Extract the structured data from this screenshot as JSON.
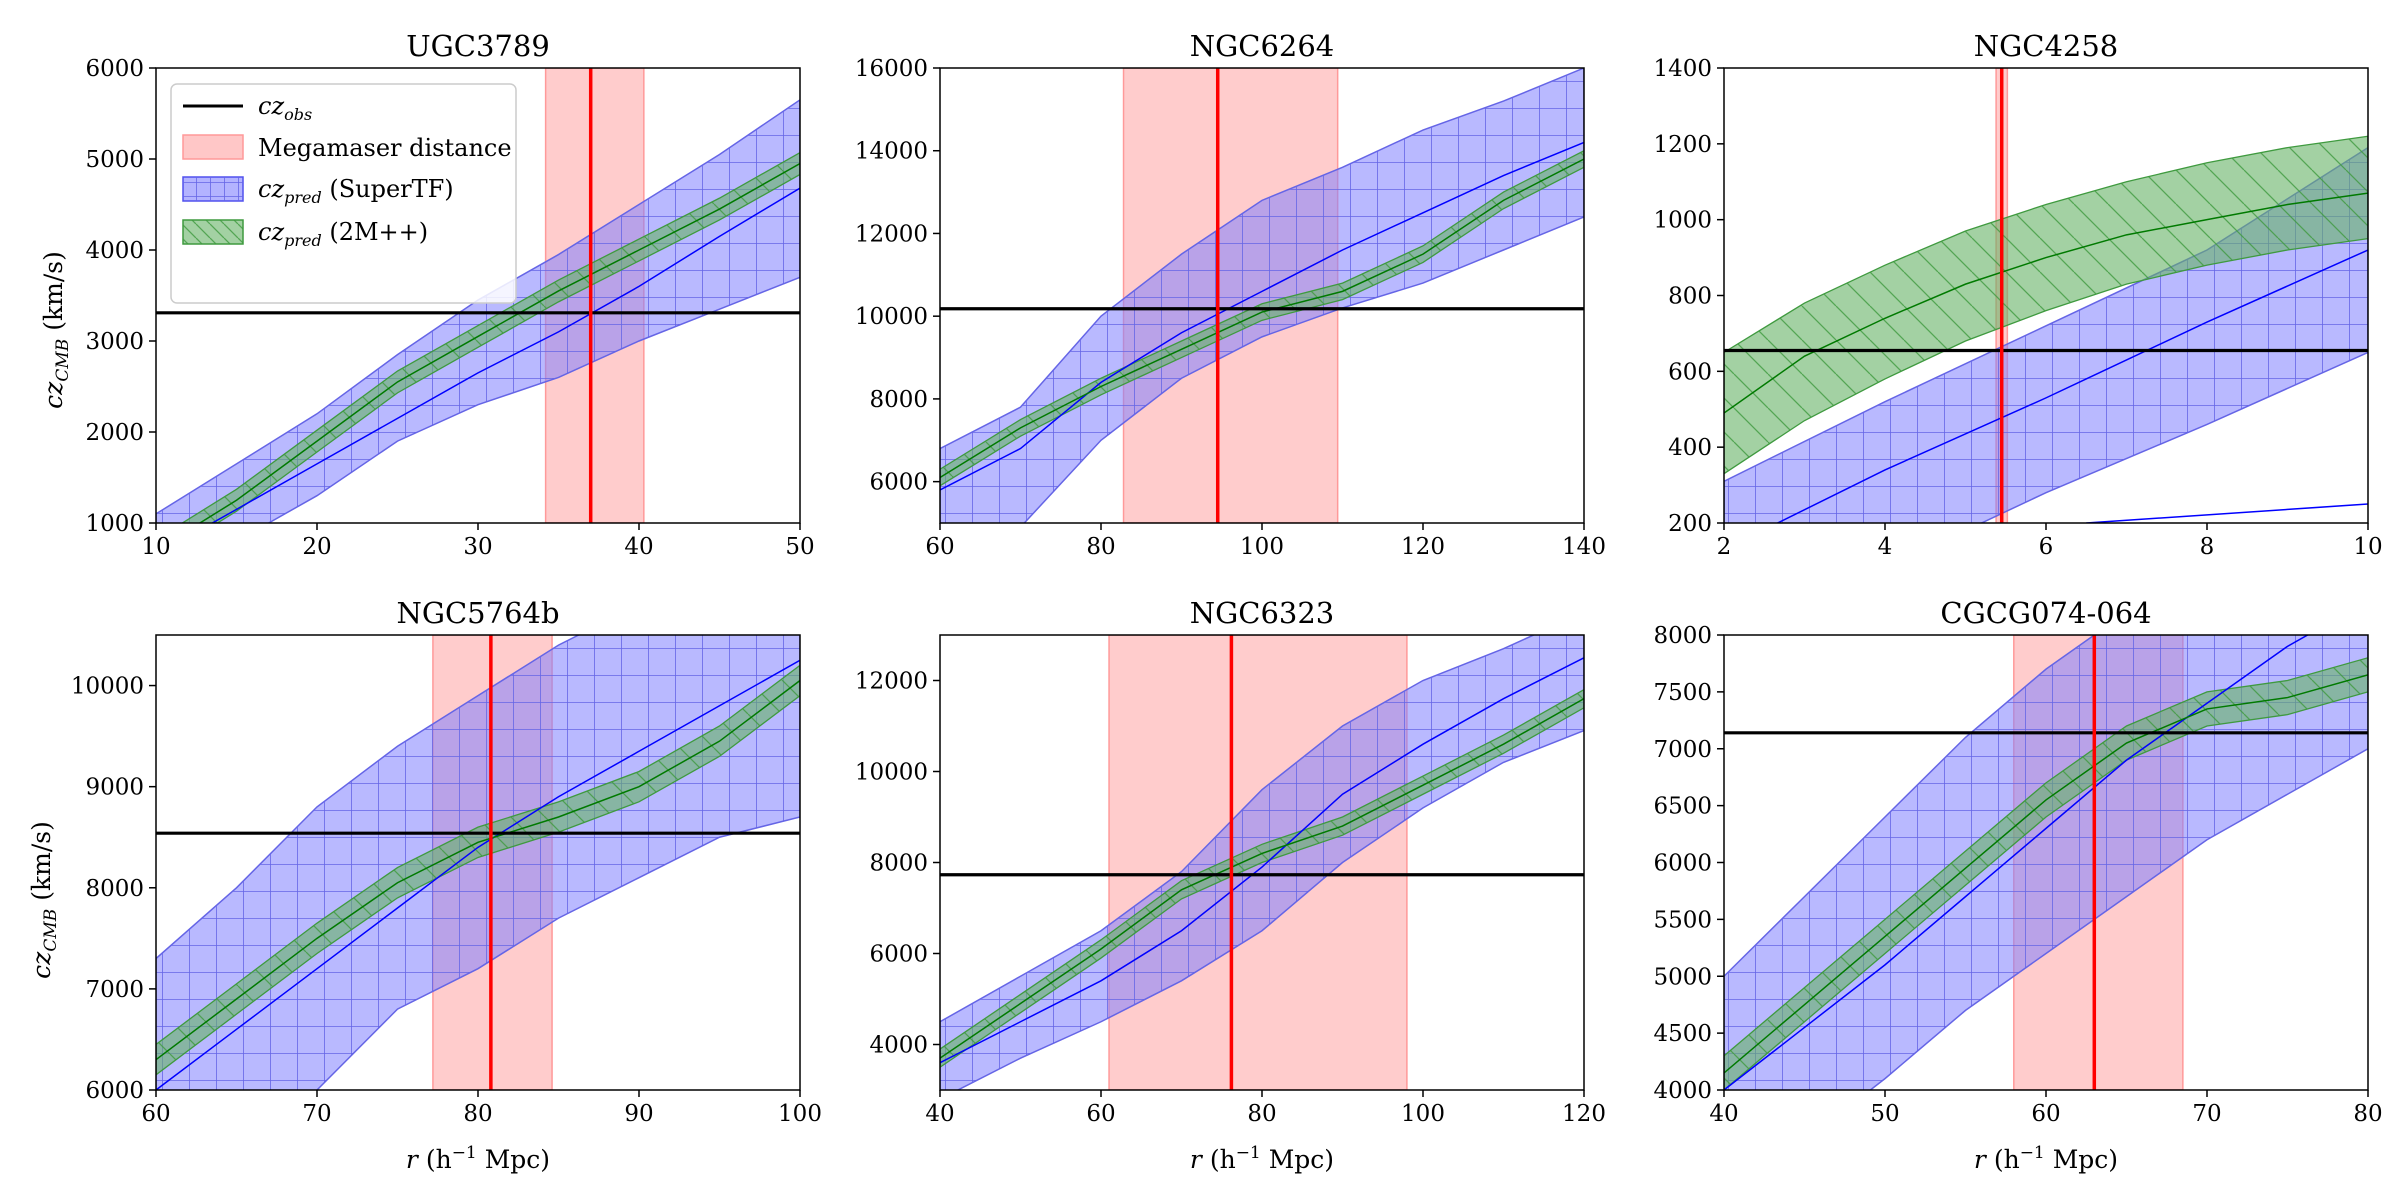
{
  "figure": {
    "y_label_main": "cz",
    "y_label_sub": "CMB",
    "y_label_unit": " (km/s)",
    "x_label_main": "r",
    "x_label_unit": " (h",
    "x_label_sup": "−1",
    "x_label_end": " Mpc)"
  },
  "legend": {
    "obs_main": "cz",
    "obs_sub": "obs",
    "megamaser": "Megamaser distance",
    "supertf_main": "cz",
    "supertf_sub": "pred",
    "supertf_suffix": " (SuperTF)",
    "twom_main": "cz",
    "twom_sub": "pred",
    "twom_suffix": " (2M++)"
  },
  "colors": {
    "obs": "#000000",
    "maser_line": "#ff0000",
    "maser_band": "#ff9999",
    "supertf_fill": "#8080ff",
    "supertf_hatch": "#6565e6",
    "supertf_line": "#0000ff",
    "twom_fill": "#66b266",
    "twom_hatch": "#3f9a3f",
    "twom_line": "#007a00"
  },
  "chart_data": [
    {
      "type": "line",
      "title": "UGC3789",
      "xlim": [
        10,
        50
      ],
      "ylim": [
        1000,
        6000
      ],
      "xticks": [
        10,
        20,
        30,
        40,
        50
      ],
      "yticks": [
        1000,
        2000,
        3000,
        4000,
        5000,
        6000
      ],
      "cz_obs": 3310,
      "maser_distance": 37.0,
      "maser_range": [
        34.2,
        40.3
      ],
      "supertf": {
        "r": [
          10,
          15,
          20,
          25,
          30,
          35,
          40,
          45,
          50
        ],
        "mean": [
          650,
          1150,
          1650,
          2150,
          2650,
          3100,
          3600,
          4150,
          4680
        ],
        "lower": [
          300,
          800,
          1300,
          1900,
          2300,
          2600,
          3000,
          3350,
          3700
        ],
        "upper": [
          1100,
          1650,
          2200,
          2850,
          3450,
          3950,
          4500,
          5050,
          5650
        ]
      },
      "twompp": {
        "r": [
          10,
          15,
          20,
          25,
          30,
          35,
          40,
          45,
          50
        ],
        "mean": [
          700,
          1250,
          1900,
          2550,
          3050,
          3550,
          4000,
          4450,
          4950
        ],
        "lower": [
          580,
          1130,
          1780,
          2430,
          2930,
          3430,
          3880,
          4330,
          4830
        ],
        "upper": [
          820,
          1370,
          2020,
          2670,
          3170,
          3670,
          4120,
          4570,
          5070
        ]
      }
    },
    {
      "type": "line",
      "title": "NGC6264",
      "xlim": [
        60,
        140
      ],
      "ylim": [
        5000,
        16000
      ],
      "xticks": [
        60,
        80,
        100,
        120,
        140
      ],
      "yticks": [
        6000,
        8000,
        10000,
        12000,
        14000,
        16000
      ],
      "cz_obs": 10180,
      "maser_distance": 94.5,
      "maser_range": [
        82.8,
        109.4
      ],
      "supertf": {
        "r": [
          60,
          70,
          80,
          90,
          100,
          110,
          120,
          130,
          140
        ],
        "mean": [
          5800,
          6800,
          8400,
          9600,
          10600,
          11600,
          12500,
          13400,
          14200
        ],
        "lower": [
          4800,
          4900,
          7000,
          8500,
          9500,
          10200,
          10800,
          11600,
          12400
        ],
        "upper": [
          6800,
          7800,
          10000,
          11500,
          12800,
          13600,
          14500,
          15200,
          16000
        ]
      },
      "twompp": {
        "r": [
          60,
          70,
          80,
          90,
          100,
          110,
          120,
          130,
          140
        ],
        "mean": [
          6100,
          7300,
          8300,
          9200,
          10100,
          10600,
          11500,
          12800,
          13800
        ],
        "lower": [
          5900,
          7100,
          8100,
          9000,
          9900,
          10400,
          11300,
          12600,
          13600
        ],
        "upper": [
          6300,
          7500,
          8500,
          9400,
          10300,
          10800,
          11700,
          13000,
          14000
        ]
      }
    },
    {
      "type": "line",
      "title": "NGC4258",
      "xlim": [
        2,
        10
      ],
      "ylim": [
        200,
        1400
      ],
      "xticks": [
        2,
        4,
        6,
        8,
        10
      ],
      "yticks": [
        200,
        400,
        600,
        800,
        1000,
        1200,
        1400
      ],
      "cz_obs": 655,
      "maser_distance": 5.45,
      "maser_range": [
        5.38,
        5.52
      ],
      "supertf": {
        "r": [
          2,
          4,
          6,
          8,
          10
        ],
        "mean": [
          130,
          340,
          530,
          730,
          920
        ],
        "lower": [
          -100,
          80,
          280,
          460,
          650
        ],
        "upper": [
          310,
          520,
          720,
          920,
          1190
        ]
      },
      "supertf_extra_line": {
        "r": [
          6.5,
          10
        ],
        "values": [
          200,
          250
        ]
      },
      "twompp": {
        "r": [
          2,
          3,
          4,
          5,
          6,
          7,
          8,
          9,
          10
        ],
        "mean": [
          490,
          640,
          740,
          830,
          900,
          960,
          1000,
          1040,
          1070
        ],
        "lower": [
          330,
          470,
          580,
          680,
          760,
          830,
          880,
          920,
          950
        ],
        "upper": [
          650,
          780,
          880,
          970,
          1040,
          1100,
          1150,
          1190,
          1220
        ]
      }
    },
    {
      "type": "line",
      "title": "NGC5764b",
      "xlim": [
        60,
        100
      ],
      "ylim": [
        6000,
        10500
      ],
      "xticks": [
        60,
        70,
        80,
        90,
        100
      ],
      "yticks": [
        6000,
        7000,
        8000,
        9000,
        10000
      ],
      "cz_obs": 8540,
      "maser_distance": 80.8,
      "maser_range": [
        77.2,
        84.6
      ],
      "supertf": {
        "r": [
          60,
          65,
          70,
          75,
          80,
          85,
          90,
          95,
          100
        ],
        "mean": [
          6000,
          6600,
          7200,
          7800,
          8400,
          8900,
          9350,
          9800,
          10250
        ],
        "lower": [
          4800,
          5400,
          6000,
          6800,
          7200,
          7700,
          8100,
          8500,
          8700
        ],
        "upper": [
          7300,
          8000,
          8800,
          9400,
          9900,
          10400,
          10800,
          11000,
          11300
        ]
      },
      "twompp": {
        "r": [
          60,
          65,
          70,
          75,
          80,
          85,
          90,
          95,
          100
        ],
        "mean": [
          6300,
          6900,
          7500,
          8050,
          8450,
          8700,
          9000,
          9450,
          10050
        ],
        "lower": [
          6150,
          6750,
          7350,
          7900,
          8300,
          8550,
          8850,
          9300,
          9900
        ],
        "upper": [
          6450,
          7050,
          7650,
          8200,
          8600,
          8850,
          9150,
          9600,
          10200
        ]
      }
    },
    {
      "type": "line",
      "title": "NGC6323",
      "xlim": [
        40,
        120
      ],
      "ylim": [
        3000,
        13000
      ],
      "xticks": [
        40,
        60,
        80,
        100,
        120
      ],
      "yticks": [
        4000,
        6000,
        8000,
        10000,
        12000
      ],
      "cz_obs": 7730,
      "maser_distance": 76.2,
      "maser_range": [
        61.0,
        98.0
      ],
      "supertf": {
        "r": [
          40,
          50,
          60,
          70,
          80,
          90,
          100,
          110,
          120
        ],
        "mean": [
          3600,
          4500,
          5400,
          6500,
          7900,
          9500,
          10600,
          11600,
          12500
        ],
        "lower": [
          2800,
          3700,
          4500,
          5400,
          6500,
          8000,
          9200,
          10200,
          10900
        ],
        "upper": [
          4500,
          5500,
          6500,
          7800,
          9600,
          11000,
          12000,
          12700,
          13500
        ]
      },
      "twompp": {
        "r": [
          40,
          50,
          60,
          70,
          80,
          90,
          100,
          110,
          120
        ],
        "mean": [
          3700,
          4900,
          6100,
          7400,
          8200,
          8800,
          9700,
          10600,
          11600
        ],
        "lower": [
          3500,
          4700,
          5900,
          7200,
          8000,
          8600,
          9500,
          10400,
          11400
        ],
        "upper": [
          3900,
          5100,
          6300,
          7600,
          8400,
          9000,
          9900,
          10800,
          11800
        ]
      }
    },
    {
      "type": "line",
      "title": "CGCG074-064",
      "xlim": [
        40,
        80
      ],
      "ylim": [
        4000,
        8000
      ],
      "xticks": [
        40,
        50,
        60,
        70,
        80
      ],
      "yticks": [
        4000,
        4500,
        5000,
        5500,
        6000,
        6500,
        7000,
        7500,
        8000
      ],
      "cz_obs": 7140,
      "maser_distance": 63.0,
      "maser_range": [
        58.0,
        68.5
      ],
      "supertf": {
        "r": [
          40,
          45,
          50,
          55,
          60,
          65,
          70,
          75,
          80
        ],
        "mean": [
          4000,
          4550,
          5100,
          5700,
          6300,
          6900,
          7400,
          7900,
          8300
        ],
        "lower": [
          3000,
          3550,
          4100,
          4700,
          5200,
          5700,
          6200,
          6600,
          7000
        ],
        "upper": [
          5000,
          5700,
          6400,
          7100,
          7700,
          8200,
          8600,
          8900,
          9200
        ]
      },
      "twompp": {
        "r": [
          40,
          45,
          50,
          55,
          60,
          65,
          70,
          75,
          80
        ],
        "mean": [
          4150,
          4750,
          5350,
          5950,
          6550,
          7050,
          7350,
          7450,
          7650
        ],
        "lower": [
          4000,
          4600,
          5200,
          5800,
          6400,
          6900,
          7200,
          7300,
          7500
        ],
        "upper": [
          4300,
          4900,
          5500,
          6100,
          6700,
          7200,
          7500,
          7600,
          7800
        ]
      }
    }
  ]
}
